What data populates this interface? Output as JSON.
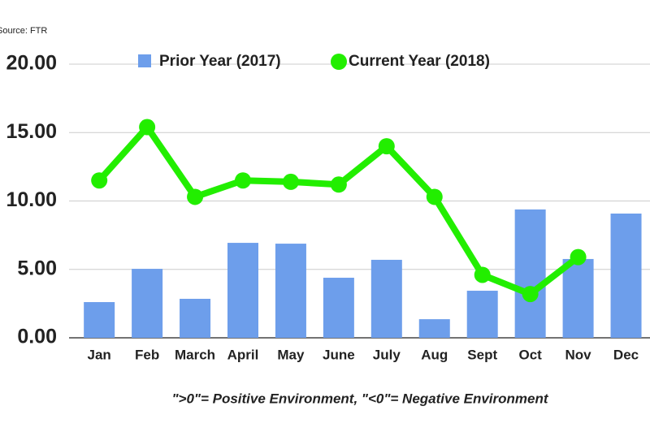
{
  "chart_data": {
    "type": "combo",
    "source": "Source: FTR",
    "note": "\">0\"= Positive Environment, \"<0\"= Negative Environment",
    "categories": [
      "Jan",
      "Feb",
      "March",
      "April",
      "May",
      "June",
      "July",
      "Aug",
      "Sept",
      "Oct",
      "Nov",
      "Dec"
    ],
    "series": [
      {
        "name": "Prior Year (2017)",
        "mark": "bar",
        "color": "#6d9eeb",
        "values": [
          2.61,
          5.04,
          2.85,
          6.94,
          6.88,
          4.39,
          5.7,
          1.36,
          3.44,
          9.38,
          5.76,
          9.08
        ]
      },
      {
        "name": "Current Year (2018)",
        "mark": "line",
        "color": "#22ee00",
        "values": [
          11.5,
          15.4,
          10.3,
          11.5,
          11.4,
          11.2,
          14.0,
          10.3,
          4.6,
          3.2,
          5.9,
          null
        ]
      }
    ],
    "ylim": [
      0,
      20
    ],
    "yticks": [
      {
        "value": 0,
        "label": "0.00"
      },
      {
        "value": 5,
        "label": "5.00"
      },
      {
        "value": 10,
        "label": "10.00"
      },
      {
        "value": 15,
        "label": "15.00"
      },
      {
        "value": 20,
        "label": "20.00"
      }
    ],
    "grid": true
  }
}
